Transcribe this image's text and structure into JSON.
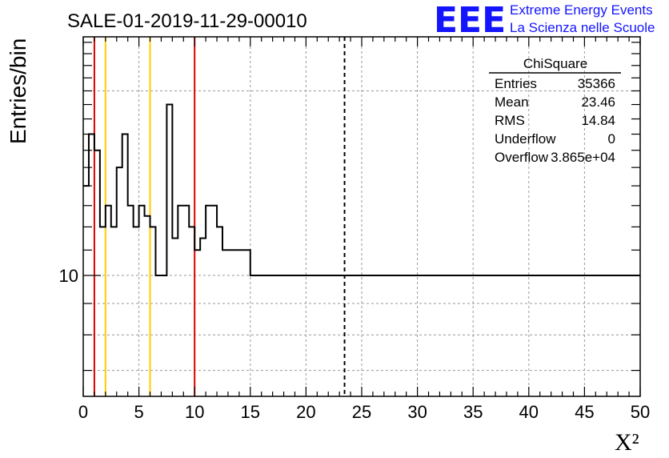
{
  "header": {
    "title": "SALE-01-2019-11-29-00010",
    "logo_mark": "EEE",
    "logo_line1": "Extreme Energy Events",
    "logo_line2": "La Scienza nelle Scuole",
    "logo_color": "#1414ff"
  },
  "stats_box": {
    "title": "ChiSquare",
    "rows": [
      {
        "label": "Entries",
        "value": "35366"
      },
      {
        "label": "Mean",
        "value": "23.46"
      },
      {
        "label": "RMS",
        "value": "14.84"
      },
      {
        "label": "Underflow",
        "value": "0"
      },
      {
        "label": "Overflow",
        "value": "3.865e+04"
      }
    ]
  },
  "chart_data": {
    "type": "histogram",
    "xlabel": "X²",
    "ylabel": "Entries/bin",
    "xlim": [
      0,
      50
    ],
    "ylim": [
      6.35,
      24.5
    ],
    "yscale": "log",
    "y_tick_labels": [
      "10"
    ],
    "x_ticks": [
      0,
      5,
      10,
      15,
      20,
      25,
      30,
      35,
      40,
      45,
      50
    ],
    "grid": true,
    "bin_width": 0.5,
    "values": [
      14,
      17,
      16,
      12,
      13,
      12,
      15,
      17,
      13,
      12,
      13,
      12.5,
      12,
      10,
      10,
      19,
      11.5,
      13,
      13,
      12,
      11,
      11.5,
      13,
      13,
      12,
      11,
      11,
      11,
      11,
      11,
      10,
      10,
      10,
      10,
      10,
      10,
      10,
      10,
      10,
      10,
      10,
      10,
      10,
      10,
      10,
      10,
      10,
      10,
      10,
      10,
      10,
      10,
      10,
      10,
      10,
      10,
      10,
      10,
      10,
      10,
      10,
      10,
      10,
      10,
      10,
      10,
      10,
      10,
      10,
      10,
      10,
      10,
      10,
      10,
      10,
      10,
      10,
      10,
      10,
      10,
      10,
      10,
      10,
      10,
      10,
      10,
      10,
      10,
      10,
      10,
      10,
      10,
      10,
      10,
      10,
      10,
      10,
      10,
      10,
      10
    ],
    "vertical_lines": [
      {
        "x": 1,
        "color": "#dd0000",
        "style": "solid"
      },
      {
        "x": 2,
        "color": "#ffcc00",
        "style": "solid"
      },
      {
        "x": 6,
        "color": "#ffcc00",
        "style": "solid"
      },
      {
        "x": 10,
        "color": "#dd0000",
        "style": "solid"
      },
      {
        "x": 23.46,
        "color": "#000000",
        "style": "dashed"
      }
    ]
  }
}
